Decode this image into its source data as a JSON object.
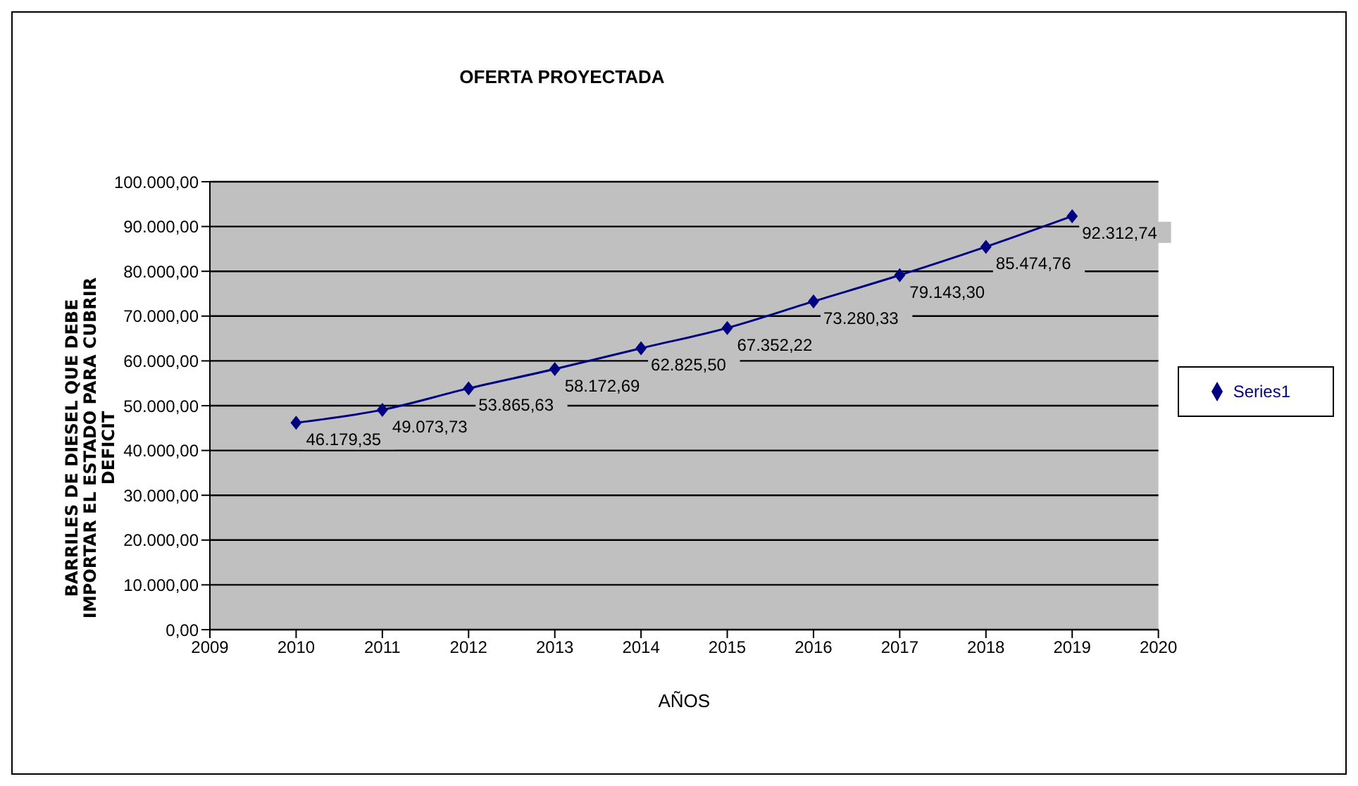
{
  "chart_data": {
    "type": "line",
    "title": "OFERTA PROYECTADA",
    "xlabel": "AÑOS",
    "ylabel": "BARRILES DE DIESEL QUE DEBE IMPORTAR EL ESTADO PARA CUBRIR DEFICIT",
    "x": [
      2010,
      2011,
      2012,
      2013,
      2014,
      2015,
      2016,
      2017,
      2018,
      2019
    ],
    "series": [
      {
        "name": "Series1",
        "color": "#000080",
        "values": [
          46179.35,
          49073.73,
          53865.63,
          58172.69,
          62825.5,
          67352.22,
          73280.33,
          79143.3,
          85474.76,
          92312.74
        ],
        "value_labels": [
          "46.179,35",
          "49.073,73",
          "53.865,63",
          "58.172,69",
          "62.825,50",
          "67.352,22",
          "73.280,33",
          "79.143,30",
          "85.474,76",
          "92.312,74"
        ]
      }
    ],
    "xlim": [
      2009,
      2020
    ],
    "xticks": [
      2009,
      2010,
      2011,
      2012,
      2013,
      2014,
      2015,
      2016,
      2017,
      2018,
      2019,
      2020
    ],
    "ylim": [
      0,
      100000
    ],
    "yticks": [
      {
        "value": 0,
        "label": "0,00"
      },
      {
        "value": 10000,
        "label": "10.000,00"
      },
      {
        "value": 20000,
        "label": "20.000,00"
      },
      {
        "value": 30000,
        "label": "30.000,00"
      },
      {
        "value": 40000,
        "label": "40.000,00"
      },
      {
        "value": 50000,
        "label": "50.000,00"
      },
      {
        "value": 60000,
        "label": "60.000,00"
      },
      {
        "value": 70000,
        "label": "70.000,00"
      },
      {
        "value": 80000,
        "label": "80.000,00"
      },
      {
        "value": 90000,
        "label": "90.000,00"
      },
      {
        "value": 100000,
        "label": "100.000,00"
      }
    ],
    "grid": "y",
    "legend": "right",
    "marker": "diamond",
    "line_style": "solid"
  }
}
